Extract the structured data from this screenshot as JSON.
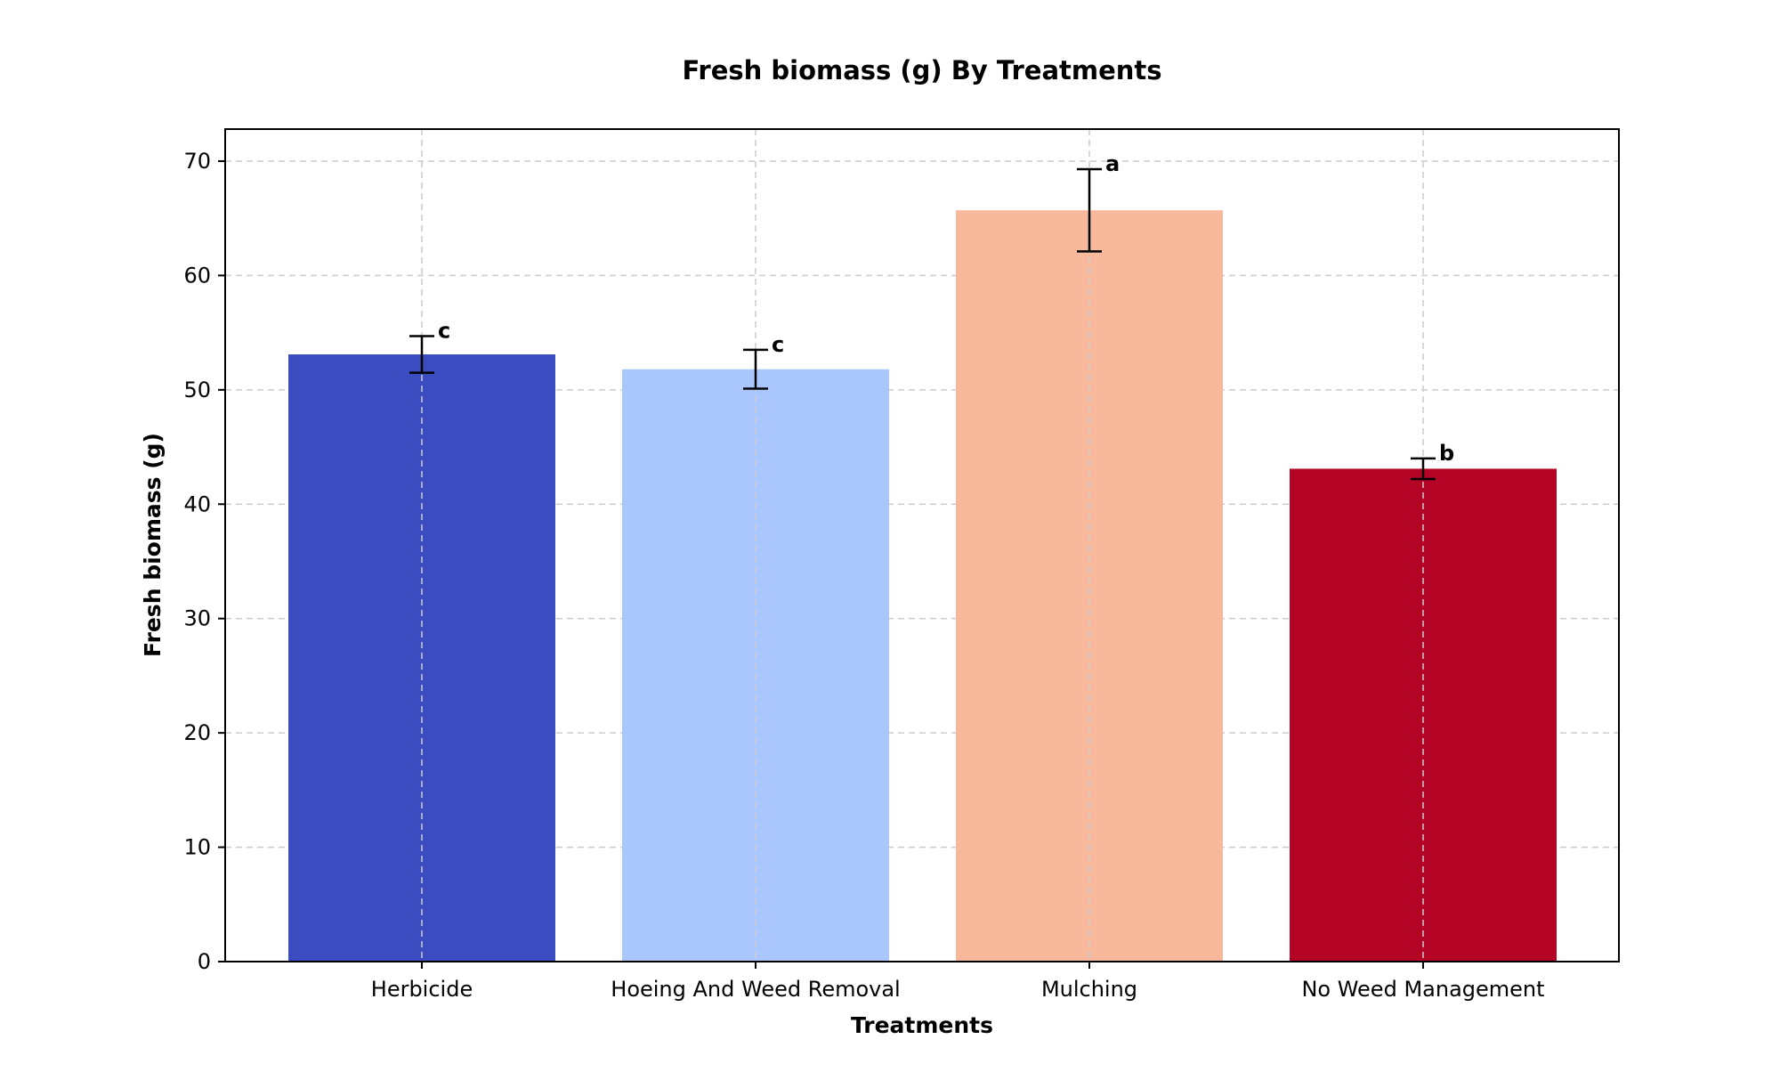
{
  "chart_data": {
    "type": "bar",
    "title": "Fresh biomass (g) By Treatments",
    "xlabel": "Treatments",
    "ylabel": "Fresh biomass (g)",
    "categories": [
      "Herbicide",
      "Hoeing And Weed Removal",
      "Mulching",
      "No Weed Management"
    ],
    "values": [
      53.1,
      51.8,
      65.7,
      43.1
    ],
    "errors": [
      1.6,
      1.7,
      3.6,
      0.9
    ],
    "significance_letters": [
      "c",
      "c",
      "a",
      "b"
    ],
    "colors": [
      "#3b4cc0",
      "#aac7fd",
      "#f7b89c",
      "#b40426"
    ],
    "ylim": [
      0,
      72.8
    ],
    "yticks": [
      "0",
      "10",
      "20",
      "30",
      "40",
      "50",
      "60",
      "70"
    ],
    "grid": true,
    "grid_style": "dashed"
  }
}
